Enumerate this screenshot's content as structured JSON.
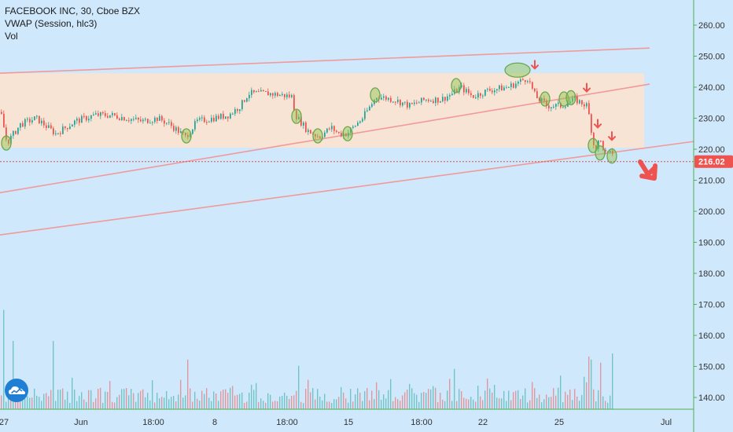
{
  "legend": {
    "line1": "FACEBOOK INC, 30, Cboe BZX",
    "line2": "VWAP (Session, hlc3)",
    "line3": "Vol"
  },
  "price_axis": {
    "ticks": [
      "260.00",
      "250.00",
      "240.00",
      "230.00",
      "220.00",
      "210.00",
      "200.00",
      "190.00",
      "180.00",
      "170.00",
      "160.00",
      "150.00",
      "140.00"
    ],
    "current_price": "216.02"
  },
  "time_axis": {
    "ticks": [
      "27",
      "Jun",
      "18:00",
      "8",
      "18:00",
      "15",
      "18:00",
      "22",
      "25",
      "Jul"
    ]
  },
  "colors": {
    "background": "#cfe8fc",
    "up": "#26a69a",
    "down": "#ef5350",
    "trendline": "#f19a9a",
    "zone": "#fbe3cf",
    "marker": "#8bc34a",
    "price_label": "#ef5350"
  },
  "chart_data": {
    "type": "candlestick",
    "title": "FACEBOOK INC, 30, Cboe BZX",
    "ylim": [
      136,
      264
    ],
    "resistance_zone": [
      220.5,
      244.5
    ],
    "last_price": 216.02,
    "trendlines": [
      {
        "from": [
          0,
          244.5
        ],
        "to": [
          826,
          252.6
        ]
      },
      {
        "from": [
          0,
          206
        ],
        "to": [
          826,
          241
        ]
      },
      {
        "from": [
          0,
          192.4
        ],
        "to": [
          882,
          222.5
        ]
      }
    ],
    "price_path": [
      [
        0,
        232
      ],
      [
        8,
        222
      ],
      [
        25,
        228
      ],
      [
        45,
        230
      ],
      [
        70,
        225
      ],
      [
        95,
        229
      ],
      [
        120,
        231
      ],
      [
        140,
        231
      ],
      [
        160,
        230
      ],
      [
        180,
        229
      ],
      [
        200,
        230
      ],
      [
        215,
        228
      ],
      [
        235,
        224
      ],
      [
        250,
        229
      ],
      [
        270,
        230
      ],
      [
        290,
        231
      ],
      [
        305,
        234
      ],
      [
        315,
        238
      ],
      [
        340,
        238
      ],
      [
        370,
        237
      ],
      [
        375,
        231
      ],
      [
        390,
        226
      ],
      [
        405,
        224
      ],
      [
        420,
        227
      ],
      [
        430,
        225
      ],
      [
        440,
        225
      ],
      [
        460,
        230
      ],
      [
        478,
        237
      ],
      [
        500,
        236
      ],
      [
        520,
        234
      ],
      [
        540,
        236
      ],
      [
        560,
        236
      ],
      [
        575,
        238
      ],
      [
        585,
        240
      ],
      [
        600,
        237
      ],
      [
        620,
        239
      ],
      [
        645,
        240
      ],
      [
        670,
        243
      ],
      [
        680,
        237
      ],
      [
        695,
        234
      ],
      [
        712,
        234
      ],
      [
        730,
        236
      ],
      [
        746,
        234
      ],
      [
        750,
        228
      ],
      [
        755,
        220
      ],
      [
        762,
        223
      ],
      [
        770,
        218
      ],
      [
        778,
        219
      ],
      [
        780,
        216
      ]
    ],
    "annotations": [
      {
        "x": 8,
        "y": 222
      },
      {
        "x": 237,
        "y": 224.3
      },
      {
        "x": 377,
        "y": 230.6
      },
      {
        "x": 404,
        "y": 224.3
      },
      {
        "x": 442,
        "y": 225
      },
      {
        "x": 477,
        "y": 237.5
      },
      {
        "x": 580,
        "y": 240.5
      },
      {
        "x": 658,
        "y": 245.5
      },
      {
        "x": 693,
        "y": 236.2
      },
      {
        "x": 717,
        "y": 236.2
      },
      {
        "x": 726,
        "y": 236.6
      },
      {
        "x": 754,
        "y": 221.2
      },
      {
        "x": 763,
        "y": 218.8
      },
      {
        "x": 778,
        "y": 217.8
      }
    ],
    "down_arrows": [
      {
        "x": 680,
        "y": 246
      },
      {
        "x": 746,
        "y": 238.6
      },
      {
        "x": 760,
        "y": 227
      },
      {
        "x": 778,
        "y": 223
      }
    ],
    "volume_peaks": [
      {
        "x": 5,
        "v": 168
      },
      {
        "x": 15,
        "v": 158
      },
      {
        "x": 68,
        "v": 158
      },
      {
        "x": 238,
        "v": 152
      },
      {
        "x": 380,
        "v": 150
      },
      {
        "x": 577,
        "v": 149
      },
      {
        "x": 748,
        "v": 153
      },
      {
        "x": 752,
        "v": 152
      },
      {
        "x": 764,
        "v": 151
      },
      {
        "x": 777,
        "v": 154
      }
    ]
  }
}
